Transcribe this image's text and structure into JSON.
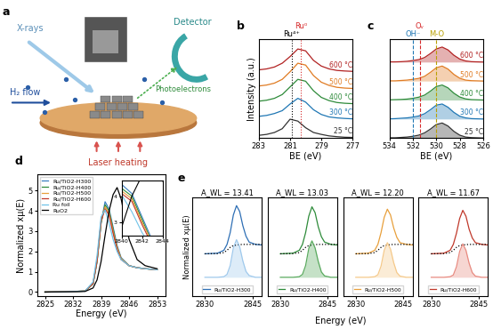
{
  "diagram": {
    "panel_label": "a",
    "labels": {
      "xrays": "X-rays",
      "detector": "Detector",
      "photoelectrons": "Photoelectrons",
      "h2_flow": "H₂ flow",
      "laser": "Laser heating"
    }
  },
  "chart_data": [
    {
      "panel_label": "b",
      "type": "line",
      "xlabel": "BE (eV)",
      "ylabel": "Intensity (a.u.)",
      "x": [
        283,
        282.5,
        282,
        281.5,
        281,
        280.5,
        280,
        279.5,
        279,
        278.5,
        278,
        277.5,
        277
      ],
      "xlim": [
        283,
        277
      ],
      "xticks": [
        283,
        281,
        279,
        277
      ],
      "ylim": [
        0,
        5.2
      ],
      "tick_labels": "x",
      "annotations": [
        {
          "x": 280.9,
          "text": "Ru⁴⁺",
          "color": "#000000",
          "line_style": "dotted"
        },
        {
          "x": 280.3,
          "text": "Ru⁰",
          "color": "#d62728",
          "line_style": "dotted"
        }
      ],
      "series": [
        {
          "name": "25 °C",
          "color": "#333333",
          "values": [
            0.15,
            0.2,
            0.3,
            0.5,
            1.0,
            0.9,
            0.55,
            0.3,
            0.2,
            0.12,
            0.08,
            0.05,
            0.04
          ]
        },
        {
          "name": "300 °C",
          "color": "#1f77b4",
          "values": [
            1.15,
            1.2,
            1.3,
            1.45,
            1.8,
            2.1,
            1.9,
            1.5,
            1.25,
            1.12,
            1.07,
            1.04,
            1.02
          ]
        },
        {
          "name": "400 °C",
          "color": "#2e8b3a",
          "values": [
            1.95,
            2.0,
            2.1,
            2.3,
            2.7,
            3.1,
            3.0,
            2.5,
            2.15,
            1.98,
            1.88,
            1.84,
            1.82
          ]
        },
        {
          "name": "500 °C",
          "color": "#e07b22",
          "values": [
            2.75,
            2.8,
            2.9,
            3.1,
            3.5,
            3.95,
            3.85,
            3.3,
            2.95,
            2.78,
            2.68,
            2.64,
            2.62
          ]
        },
        {
          "name": "600 °C",
          "color": "#b22222",
          "values": [
            3.6,
            3.65,
            3.75,
            3.95,
            4.3,
            4.7,
            4.6,
            4.1,
            3.8,
            3.65,
            3.57,
            3.54,
            3.52
          ]
        }
      ]
    },
    {
      "panel_label": "c",
      "type": "line",
      "xlabel": "BE (eV)",
      "x": [
        534,
        533.5,
        533,
        532.5,
        532,
        531.5,
        531,
        530.5,
        530,
        529.5,
        529,
        528.5,
        528,
        527.5,
        527,
        526.5,
        526
      ],
      "xlim": [
        534,
        526
      ],
      "xticks": [
        534,
        532,
        530,
        528,
        526
      ],
      "ylim": [
        0,
        5.2
      ],
      "tick_labels": "x",
      "annotations": [
        {
          "x": 532.0,
          "text": "OH⁻",
          "color": "#1f77b4",
          "line_style": "dashed"
        },
        {
          "x": 531.4,
          "text": "Oᵥ",
          "color": "#d62728",
          "line_style": "dashed"
        },
        {
          "x": 530.0,
          "text": "M-O",
          "color": "#b8a000",
          "line_style": "dashed"
        }
      ],
      "series": [
        {
          "name": "25 °C",
          "type": "area",
          "color": "#333333",
          "values": [
            0.02,
            0.02,
            0.04,
            0.06,
            0.1,
            0.16,
            0.28,
            0.48,
            0.72,
            0.8,
            0.64,
            0.36,
            0.16,
            0.06,
            0.03,
            0.02,
            0.01
          ]
        },
        {
          "name": "300 °C",
          "type": "area",
          "color": "#1f77b4",
          "values": [
            1.02,
            1.03,
            1.05,
            1.07,
            1.11,
            1.17,
            1.29,
            1.5,
            1.74,
            1.8,
            1.63,
            1.36,
            1.16,
            1.07,
            1.03,
            1.02,
            1.01
          ]
        },
        {
          "name": "400 °C",
          "type": "area",
          "color": "#2e8b3a",
          "values": [
            2.02,
            2.03,
            2.04,
            2.06,
            2.1,
            2.16,
            2.27,
            2.48,
            2.72,
            2.8,
            2.65,
            2.37,
            2.17,
            2.07,
            2.03,
            2.02,
            2.01
          ]
        },
        {
          "name": "500 °C",
          "type": "area",
          "color": "#e07b22",
          "values": [
            3.02,
            3.02,
            3.04,
            3.06,
            3.1,
            3.15,
            3.26,
            3.47,
            3.71,
            3.8,
            3.64,
            3.36,
            3.16,
            3.06,
            3.03,
            3.02,
            3.01
          ]
        },
        {
          "name": "600 °C",
          "type": "area",
          "color": "#b22222",
          "values": [
            4.02,
            4.02,
            4.03,
            4.05,
            4.09,
            4.14,
            4.25,
            4.46,
            4.7,
            4.8,
            4.65,
            4.37,
            4.17,
            4.07,
            4.03,
            4.02,
            4.01
          ]
        }
      ]
    },
    {
      "panel_label": "d",
      "type": "line",
      "xlabel": "Energy (eV)",
      "ylabel": "Normalized xμ(E)",
      "x": [
        2825,
        2830,
        2835,
        2837,
        2838,
        2839,
        2840,
        2841,
        2842,
        2843,
        2844,
        2846,
        2848,
        2850,
        2853
      ],
      "xlim": [
        2823,
        2855
      ],
      "xticks": [
        2825,
        2832,
        2839,
        2846,
        2853
      ],
      "ylim": [
        -0.2,
        5.8
      ],
      "yticks": [
        0,
        1,
        2,
        3,
        4,
        5
      ],
      "legend": "upper left",
      "inset": {
        "xlim": [
          2840,
          2844
        ],
        "xticks": [
          2840,
          2842,
          2844
        ],
        "ylim": [
          2.5,
          4.6
        ],
        "yticks": [
          3,
          4
        ]
      },
      "series": [
        {
          "name": "Ru/TiO2-H300",
          "color": "#3a7fc0",
          "values": [
            0,
            0.01,
            0.05,
            0.4,
            1.5,
            3.4,
            4.45,
            4.1,
            3.2,
            2.3,
            1.7,
            1.3,
            1.2,
            1.15,
            1.1
          ]
        },
        {
          "name": "Ru/TiO2-H400",
          "color": "#2e8b3a",
          "values": [
            0,
            0.01,
            0.05,
            0.4,
            1.5,
            3.4,
            4.3,
            4.0,
            3.1,
            2.2,
            1.65,
            1.3,
            1.2,
            1.15,
            1.1
          ]
        },
        {
          "name": "Ru/TiO2-H500",
          "color": "#e8a03c",
          "values": [
            0,
            0.01,
            0.05,
            0.42,
            1.55,
            3.5,
            4.2,
            3.9,
            3.0,
            2.2,
            1.65,
            1.3,
            1.2,
            1.15,
            1.1
          ]
        },
        {
          "name": "Ru/TiO2-H600",
          "color": "#c0392b",
          "values": [
            0,
            0.01,
            0.05,
            0.42,
            1.55,
            3.5,
            4.1,
            3.8,
            2.9,
            2.1,
            1.6,
            1.3,
            1.2,
            1.15,
            1.1
          ]
        },
        {
          "name": "Ru foil",
          "color": "#6fc3e8",
          "values": [
            0,
            0.01,
            0.05,
            0.5,
            1.8,
            3.7,
            4.05,
            3.4,
            2.6,
            2.0,
            1.6,
            1.3,
            1.2,
            1.15,
            1.1
          ]
        },
        {
          "name": "RuO2",
          "color": "#000000",
          "values": [
            0,
            0.01,
            0.03,
            0.2,
            0.6,
            1.5,
            2.8,
            4.0,
            4.8,
            5.15,
            4.6,
            2.6,
            1.6,
            1.3,
            1.15
          ]
        }
      ]
    },
    {
      "panel_label": "e",
      "type": "line_group",
      "xlabel": "Energy (eV)",
      "ylabel": "Normalized xμ(E)",
      "subplots": [
        {
          "type": "line",
          "title": "A_WL = 13.41",
          "x": [
            2830,
            2834,
            2836,
            2837,
            2838,
            2839,
            2840,
            2841,
            2842,
            2843,
            2844,
            2846,
            2848
          ],
          "xlim": [
            2826,
            2848
          ],
          "xticks": [
            2830,
            2845
          ],
          "ylim": [
            -1.6,
            6.8
          ],
          "tick_labels": "x",
          "legend": "lower center",
          "series": [
            {
              "name": "Ru/TiO2-H300",
              "color": "#2e6fb5",
              "values": [
                2.0,
                2.05,
                2.3,
                2.8,
                3.8,
                5.3,
                6.1,
                5.6,
                4.4,
                3.5,
                3.0,
                2.8,
                2.75
              ]
            },
            {
              "color": "#000000",
              "line_style": "dotted",
              "values": [
                2.0,
                2.02,
                2.1,
                2.3,
                2.55,
                2.7,
                2.75,
                2.78,
                2.8,
                2.8,
                2.8,
                2.8,
                2.8
              ]
            },
            {
              "type": "area",
              "color": "#9fc9ec",
              "values": [
                0,
                0,
                0.05,
                0.25,
                1.0,
                2.5,
                3.2,
                2.6,
                1.4,
                0.5,
                0.15,
                0,
                0
              ]
            }
          ]
        },
        {
          "type": "line",
          "title": "A_WL = 13.03",
          "x": [
            2830,
            2834,
            2836,
            2837,
            2838,
            2839,
            2840,
            2841,
            2842,
            2843,
            2844,
            2846,
            2848
          ],
          "xlim": [
            2826,
            2848
          ],
          "xticks": [
            2830,
            2845
          ],
          "ylim": [
            -1.6,
            6.8
          ],
          "tick_labels": "x",
          "legend": "lower center",
          "series": [
            {
              "name": "Ru/TiO2-H400",
              "color": "#2e8b3a",
              "values": [
                2.0,
                2.05,
                2.3,
                2.8,
                3.8,
                5.2,
                6.0,
                5.5,
                4.3,
                3.45,
                3.0,
                2.8,
                2.75
              ]
            },
            {
              "color": "#000000",
              "line_style": "dotted",
              "values": [
                2.0,
                2.02,
                2.1,
                2.3,
                2.55,
                2.7,
                2.75,
                2.78,
                2.8,
                2.8,
                2.8,
                2.8,
                2.8
              ]
            },
            {
              "type": "area",
              "color": "#5aaa5f",
              "values": [
                0,
                0,
                0.05,
                0.25,
                1.0,
                2.45,
                3.1,
                2.5,
                1.35,
                0.45,
                0.12,
                0,
                0
              ]
            }
          ]
        },
        {
          "type": "line",
          "title": "A_WL = 12.20",
          "x": [
            2830,
            2834,
            2836,
            2837,
            2838,
            2839,
            2840,
            2841,
            2842,
            2843,
            2844,
            2846,
            2848
          ],
          "xlim": [
            2826,
            2848
          ],
          "xticks": [
            2830,
            2845
          ],
          "ylim": [
            -1.6,
            6.8
          ],
          "tick_labels": "x",
          "legend": "lower center",
          "series": [
            {
              "name": "Ru/TiO2-H500",
              "color": "#e8a03c",
              "values": [
                2.0,
                2.05,
                2.3,
                2.8,
                3.8,
                5.1,
                5.8,
                5.3,
                4.2,
                3.4,
                2.95,
                2.8,
                2.75
              ]
            },
            {
              "color": "#000000",
              "line_style": "dotted",
              "values": [
                2.0,
                2.02,
                2.1,
                2.3,
                2.55,
                2.7,
                2.75,
                2.78,
                2.8,
                2.8,
                2.8,
                2.8,
                2.8
              ]
            },
            {
              "type": "area",
              "color": "#f5c98a",
              "values": [
                0,
                0,
                0.05,
                0.22,
                0.95,
                2.3,
                2.95,
                2.4,
                1.25,
                0.4,
                0.1,
                0,
                0
              ]
            }
          ]
        },
        {
          "type": "line",
          "title": "A_WL = 11.67",
          "x": [
            2830,
            2834,
            2836,
            2837,
            2838,
            2839,
            2840,
            2841,
            2842,
            2843,
            2844,
            2846,
            2848
          ],
          "xlim": [
            2826,
            2848
          ],
          "xticks": [
            2830,
            2845
          ],
          "ylim": [
            -1.6,
            6.8
          ],
          "tick_labels": "x",
          "legend": "lower center",
          "series": [
            {
              "name": "Ru/TiO2-H600",
              "color": "#c0392b",
              "values": [
                2.0,
                2.05,
                2.3,
                2.8,
                3.75,
                5.0,
                5.7,
                5.2,
                4.1,
                3.35,
                2.95,
                2.8,
                2.75
              ]
            },
            {
              "color": "#000000",
              "line_style": "dotted",
              "values": [
                2.0,
                2.02,
                2.1,
                2.3,
                2.55,
                2.7,
                2.75,
                2.78,
                2.8,
                2.8,
                2.8,
                2.8,
                2.8
              ]
            },
            {
              "type": "area",
              "color": "#e88a80",
              "values": [
                0,
                0,
                0.05,
                0.2,
                0.9,
                2.2,
                2.85,
                2.3,
                1.2,
                0.4,
                0.1,
                0,
                0
              ]
            }
          ]
        }
      ]
    }
  ]
}
